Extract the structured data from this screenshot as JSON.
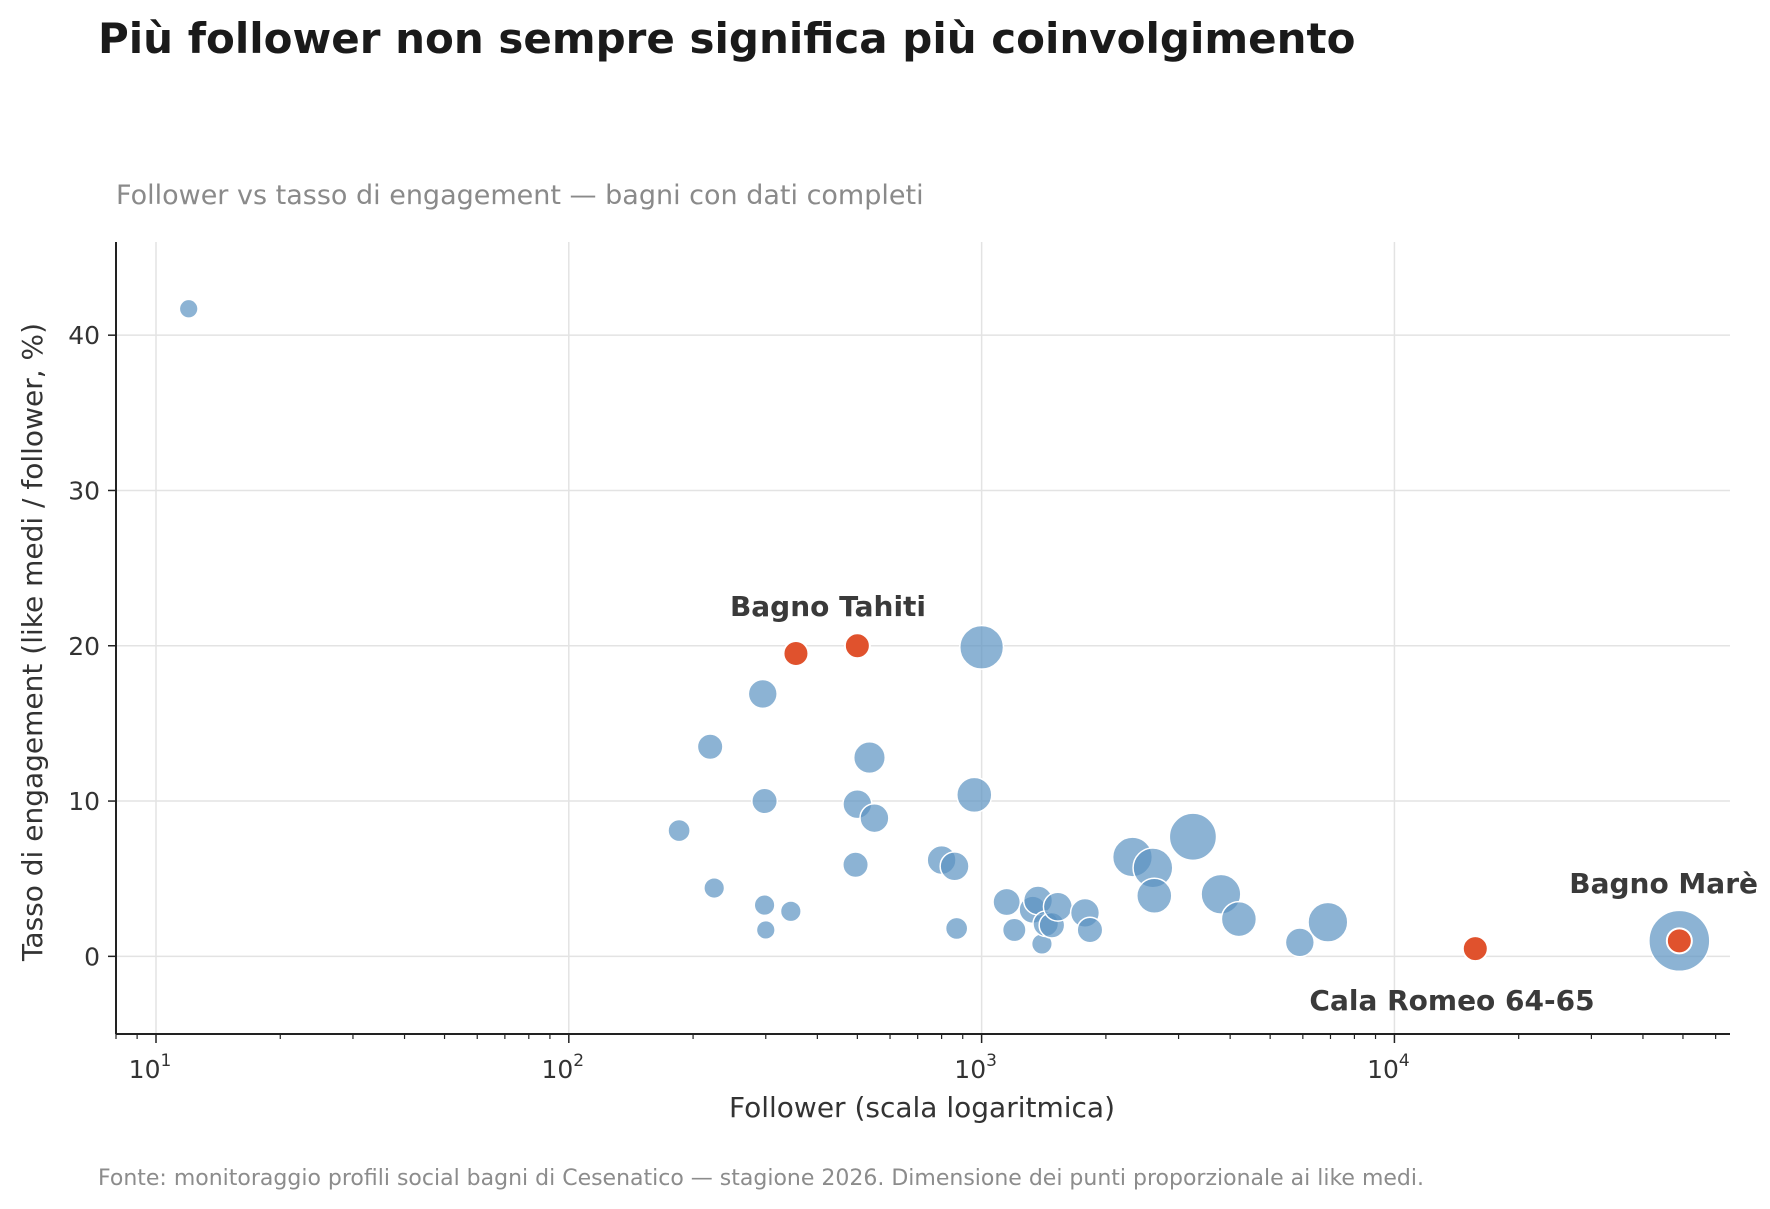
{
  "header": {
    "title": "Più follower non sempre significa più coinvolgimento",
    "subtitle": "Follower vs tasso di engagement — bagni con dati completi"
  },
  "footer": {
    "source": "Fonte: monitoraggio profili social bagni di Cesenatico — stagione 2026. Dimensione dei punti proporzionale ai like medi."
  },
  "colors": {
    "point": "#5b93c2",
    "highlight": "#e0522d",
    "grid": "#e3e3e3",
    "axis": "#222222",
    "label": "#3a3a3a"
  },
  "chart_data": {
    "type": "scatter",
    "xlabel": "Follower (scala logaritmica)",
    "ylabel": "Tasso di engagement (like medi / follower, %)",
    "xscale": "log",
    "xlim": [
      8,
      65000
    ],
    "ylim": [
      -5,
      46
    ],
    "grid": true,
    "x_ticks": [
      {
        "value": 10,
        "base": "10",
        "exp": "1"
      },
      {
        "value": 100,
        "base": "10",
        "exp": "2"
      },
      {
        "value": 1000,
        "base": "10",
        "exp": "3"
      },
      {
        "value": 10000,
        "base": "10",
        "exp": "4"
      }
    ],
    "y_ticks": [
      0,
      10,
      20,
      30,
      40
    ],
    "points": [
      {
        "x": 12,
        "y": 41.7,
        "size": 5
      },
      {
        "x": 185,
        "y": 8.1,
        "size": 15
      },
      {
        "x": 220,
        "y": 13.5,
        "size": 30
      },
      {
        "x": 225,
        "y": 4.4,
        "size": 10
      },
      {
        "x": 295,
        "y": 16.9,
        "size": 50
      },
      {
        "x": 298,
        "y": 10.0,
        "size": 30
      },
      {
        "x": 298,
        "y": 3.3,
        "size": 10
      },
      {
        "x": 300,
        "y": 1.7,
        "size": 5
      },
      {
        "x": 345,
        "y": 2.9,
        "size": 10
      },
      {
        "x": 495,
        "y": 5.9,
        "size": 30
      },
      {
        "x": 500,
        "y": 9.8,
        "size": 50
      },
      {
        "x": 535,
        "y": 12.8,
        "size": 70
      },
      {
        "x": 550,
        "y": 8.9,
        "size": 50
      },
      {
        "x": 800,
        "y": 6.2,
        "size": 50
      },
      {
        "x": 860,
        "y": 5.8,
        "size": 50
      },
      {
        "x": 870,
        "y": 1.8,
        "size": 15
      },
      {
        "x": 960,
        "y": 10.4,
        "size": 100
      },
      {
        "x": 1000,
        "y": 19.9,
        "size": 200
      },
      {
        "x": 1150,
        "y": 3.5,
        "size": 40
      },
      {
        "x": 1200,
        "y": 1.7,
        "size": 20
      },
      {
        "x": 1330,
        "y": 3.0,
        "size": 40
      },
      {
        "x": 1370,
        "y": 3.6,
        "size": 50
      },
      {
        "x": 1400,
        "y": 0.8,
        "size": 10
      },
      {
        "x": 1430,
        "y": 2.1,
        "size": 30
      },
      {
        "x": 1480,
        "y": 2.0,
        "size": 30
      },
      {
        "x": 1530,
        "y": 3.2,
        "size": 50
      },
      {
        "x": 1780,
        "y": 2.8,
        "size": 50
      },
      {
        "x": 1830,
        "y": 1.7,
        "size": 30
      },
      {
        "x": 2320,
        "y": 6.4,
        "size": 150
      },
      {
        "x": 2600,
        "y": 5.7,
        "size": 150
      },
      {
        "x": 2620,
        "y": 3.9,
        "size": 100
      },
      {
        "x": 3250,
        "y": 7.7,
        "size": 250
      },
      {
        "x": 3800,
        "y": 4.0,
        "size": 150
      },
      {
        "x": 4200,
        "y": 2.4,
        "size": 100
      },
      {
        "x": 5900,
        "y": 0.9,
        "size": 50
      },
      {
        "x": 6900,
        "y": 2.2,
        "size": 150
      },
      {
        "x": 49000,
        "y": 1.0,
        "size": 500
      }
    ],
    "highlights": [
      {
        "name": "Bagno Tahiti",
        "x": 500,
        "y": 20.0,
        "label": "Bagno Tahiti",
        "label_pos": "above"
      },
      {
        "name": "",
        "x": 355,
        "y": 19.5,
        "label": "",
        "label_pos": "none"
      },
      {
        "name": "Cala Romeo 64-65",
        "x": 15700,
        "y": 0.5,
        "label": "Cala Romeo 64-65",
        "label_pos": "below"
      },
      {
        "name": "Bagno Marè",
        "x": 49000,
        "y": 1.0,
        "label": "Bagno Marè",
        "label_pos": "above"
      }
    ]
  }
}
